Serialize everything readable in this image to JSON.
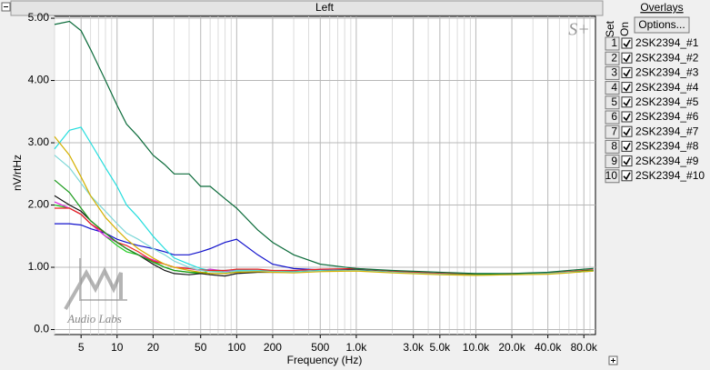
{
  "chart_data": {
    "type": "line",
    "title": "Left",
    "x_label": "Frequency (Hz)",
    "y_label": "nV/rtHz",
    "x_scale": "log",
    "grid": true,
    "xlim": [
      3,
      100000
    ],
    "ylim": [
      -0.08,
      5.03
    ],
    "xticks": [
      5,
      10,
      20,
      50,
      100,
      200,
      500,
      {
        "value": 1000,
        "label": "1.0k"
      },
      {
        "value": 3000,
        "label": "3.0k"
      },
      {
        "value": 5000,
        "label": "5.0k"
      },
      {
        "value": 10000,
        "label": "10.0k"
      },
      {
        "value": 20000,
        "label": "20.0k"
      },
      {
        "value": 40000,
        "label": "40.0k"
      },
      {
        "value": 80000,
        "label": "80.0k"
      }
    ],
    "xminorticks": [
      3,
      4,
      6,
      7,
      8,
      9,
      30,
      40,
      60,
      70,
      80,
      90,
      300,
      400,
      600,
      700,
      800,
      900,
      2000,
      4000,
      6000,
      7000,
      8000,
      9000,
      30000,
      50000,
      60000,
      70000,
      90000
    ],
    "yticks": [
      {
        "value": 0,
        "label": "0.0"
      },
      {
        "value": 1,
        "label": "1.00"
      },
      {
        "value": 2,
        "label": "2.00"
      },
      {
        "value": 3,
        "label": "3.00"
      },
      {
        "value": 4,
        "label": "4.00"
      },
      {
        "value": 5,
        "label": "5.00"
      }
    ],
    "x": [
      3,
      4,
      5,
      6,
      8,
      10,
      12,
      15,
      20,
      25,
      30,
      40,
      50,
      60,
      80,
      100,
      150,
      200,
      300,
      500,
      1000,
      2000,
      5000,
      10000,
      20000,
      40000,
      60000,
      80000,
      96000
    ],
    "series": [
      {
        "name": "2SK2394_#1",
        "color": "#22cc22",
        "values": [
          2.0,
          1.95,
          1.85,
          1.7,
          1.5,
          1.35,
          1.25,
          1.2,
          1.1,
          1.0,
          0.95,
          0.92,
          0.9,
          0.95,
          0.92,
          0.95,
          0.95,
          0.93,
          0.92,
          0.94,
          0.95,
          0.92,
          0.9,
          0.88,
          0.89,
          0.9,
          0.93,
          0.94,
          0.95
        ]
      },
      {
        "name": "2SK2394_#2",
        "color": "#1010cc",
        "values": [
          1.7,
          1.7,
          1.68,
          1.62,
          1.55,
          1.45,
          1.4,
          1.35,
          1.3,
          1.25,
          1.2,
          1.2,
          1.25,
          1.3,
          1.4,
          1.45,
          1.2,
          1.05,
          0.98,
          0.96,
          0.96,
          0.93,
          0.9,
          0.88,
          0.89,
          0.9,
          0.92,
          0.93,
          0.94
        ]
      },
      {
        "name": "2SK2394_#3",
        "color": "#dd22dd",
        "values": [
          2.05,
          1.95,
          1.85,
          1.7,
          1.5,
          1.4,
          1.3,
          1.2,
          1.12,
          1.05,
          1.0,
          0.98,
          0.95,
          0.97,
          0.94,
          0.95,
          0.95,
          0.94,
          0.93,
          0.95,
          0.96,
          0.93,
          0.9,
          0.88,
          0.89,
          0.9,
          0.92,
          0.94,
          0.95
        ]
      },
      {
        "name": "2SK2394_#4",
        "color": "#22dddd",
        "values": [
          2.9,
          3.2,
          3.25,
          3.0,
          2.6,
          2.3,
          2.0,
          1.8,
          1.5,
          1.3,
          1.15,
          1.05,
          0.98,
          0.95,
          0.95,
          0.96,
          0.95,
          0.94,
          0.93,
          0.95,
          0.96,
          0.93,
          0.9,
          0.88,
          0.89,
          0.9,
          0.92,
          0.93,
          0.95
        ]
      },
      {
        "name": "2SK2394_#5",
        "color": "#111111",
        "values": [
          2.15,
          2.0,
          1.9,
          1.75,
          1.55,
          1.4,
          1.3,
          1.2,
          1.05,
          0.95,
          0.9,
          0.88,
          0.9,
          0.88,
          0.86,
          0.9,
          0.92,
          0.92,
          0.92,
          0.94,
          0.96,
          0.92,
          0.9,
          0.88,
          0.89,
          0.9,
          0.92,
          0.93,
          0.95
        ]
      },
      {
        "name": "2SK2394_#6",
        "color": "#ee2222",
        "values": [
          1.95,
          1.95,
          1.85,
          1.7,
          1.55,
          1.4,
          1.35,
          1.25,
          1.1,
          1.05,
          1.0,
          0.98,
          0.96,
          0.95,
          0.95,
          0.97,
          0.97,
          0.95,
          0.95,
          0.97,
          0.98,
          0.94,
          0.9,
          0.89,
          0.9,
          0.91,
          0.93,
          0.95,
          0.96
        ]
      },
      {
        "name": "2SK2394_#7",
        "color": "#1a9a1a",
        "values": [
          2.4,
          2.2,
          1.95,
          1.75,
          1.55,
          1.4,
          1.3,
          1.2,
          1.08,
          1.0,
          0.95,
          0.92,
          0.92,
          0.9,
          0.9,
          0.93,
          0.94,
          0.93,
          0.92,
          0.94,
          0.95,
          0.92,
          0.89,
          0.88,
          0.89,
          0.9,
          0.92,
          0.94,
          0.95
        ]
      },
      {
        "name": "2SK2394_#8",
        "color": "#7fd8d8",
        "values": [
          2.8,
          2.6,
          2.35,
          2.15,
          1.9,
          1.7,
          1.55,
          1.45,
          1.3,
          1.2,
          1.1,
          1.0,
          0.95,
          0.93,
          0.92,
          0.94,
          0.94,
          0.93,
          0.92,
          0.94,
          0.95,
          0.92,
          0.89,
          0.87,
          0.88,
          0.9,
          0.92,
          0.93,
          0.94
        ]
      },
      {
        "name": "2SK2394_#9",
        "color": "#d4b000",
        "values": [
          3.1,
          2.8,
          2.45,
          2.15,
          1.8,
          1.6,
          1.45,
          1.3,
          1.15,
          1.05,
          1.0,
          0.95,
          0.92,
          0.9,
          0.9,
          0.92,
          0.93,
          0.92,
          0.91,
          0.93,
          0.94,
          0.91,
          0.88,
          0.87,
          0.88,
          0.89,
          0.91,
          0.93,
          0.94
        ]
      },
      {
        "name": "2SK2394_#10",
        "color": "#0b6b3a",
        "values": [
          4.9,
          4.95,
          4.8,
          4.5,
          4.0,
          3.6,
          3.3,
          3.1,
          2.8,
          2.65,
          2.5,
          2.5,
          2.3,
          2.3,
          2.1,
          1.95,
          1.6,
          1.4,
          1.2,
          1.05,
          0.98,
          0.95,
          0.92,
          0.9,
          0.9,
          0.92,
          0.95,
          0.97,
          0.98
        ]
      }
    ]
  },
  "overlay_panel": {
    "title": "Overlays",
    "button": "Options...",
    "set_header": "Set",
    "on_header": "On",
    "sets": [
      1,
      2,
      3,
      4,
      5,
      6,
      7,
      8,
      9,
      10
    ]
  },
  "branding": {
    "logo": "S+",
    "watermark": "Audio Labs"
  }
}
